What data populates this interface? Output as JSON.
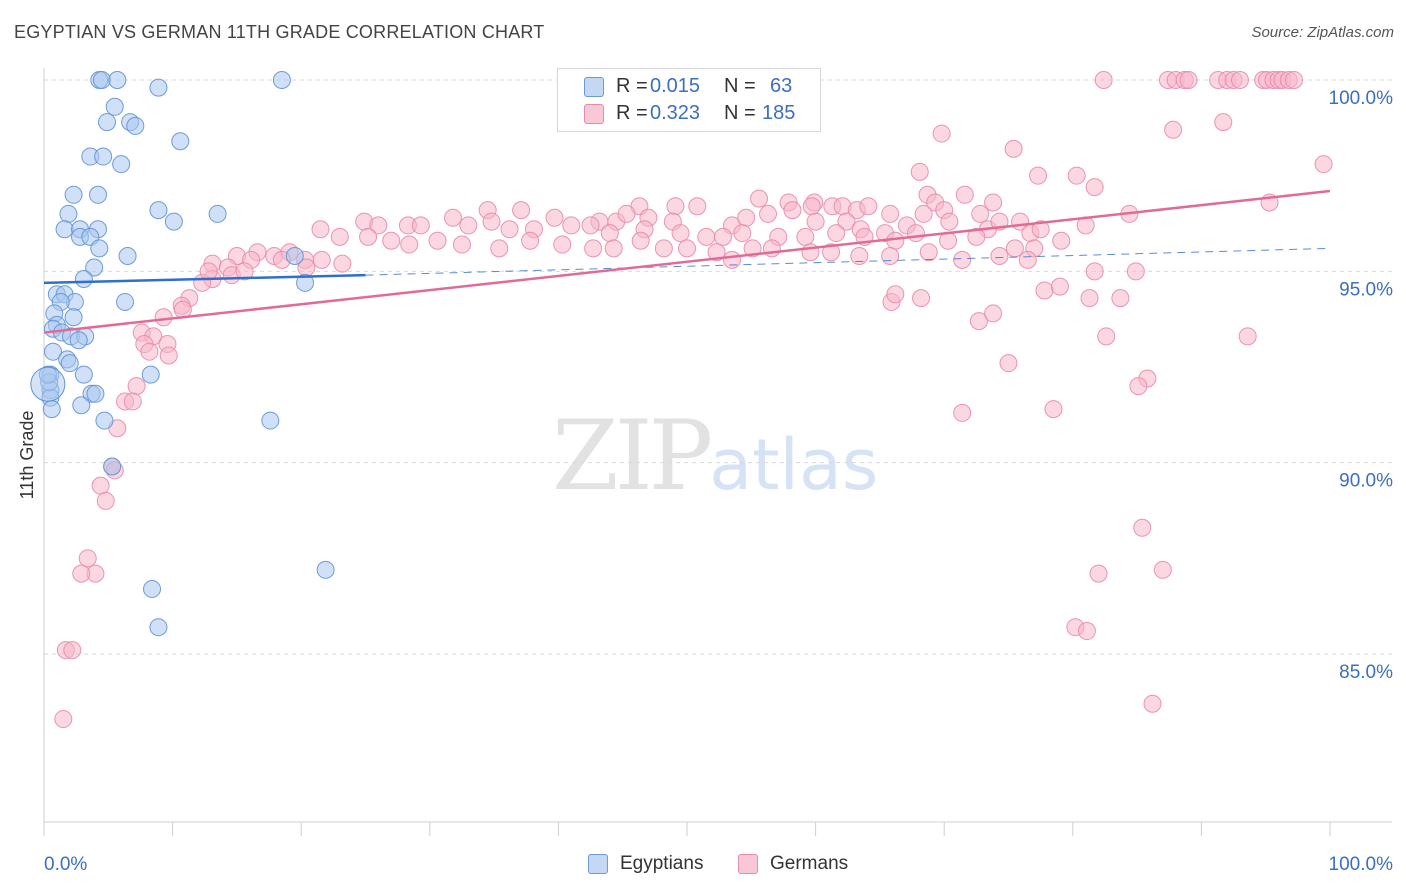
{
  "header": {
    "title": "EGYPTIAN VS GERMAN 11TH GRADE CORRELATION CHART",
    "source": "Source: ZipAtlas.com"
  },
  "watermark": {
    "zip": "ZIP",
    "atlas": "atlas"
  },
  "colors": {
    "egyptians_fill": "#a9c7ee",
    "egyptians_stroke": "#5f92d6",
    "egyptians_line": "#2f6fce",
    "germans_fill": "#f7b7cb",
    "germans_stroke": "#e98aa8",
    "germans_line": "#e26b96",
    "value_blue": "#3a6fc4"
  },
  "stats_legend": [
    {
      "r_label": "R =",
      "r_value": "0.015",
      "n_label": "N =",
      "n_value": "63"
    },
    {
      "r_label": "R =",
      "r_value": "0.323",
      "n_label": "N =",
      "n_value": "185"
    }
  ],
  "chart_data": {
    "type": "scatter",
    "title": "EGYPTIAN VS GERMAN 11TH GRADE CORRELATION CHART",
    "xlabel": "",
    "ylabel": "11th Grade",
    "xlim": [
      0,
      100
    ],
    "ylim": [
      80.5,
      101.0
    ],
    "x_tick_labels": [
      "0.0%",
      "100.0%"
    ],
    "y_ticks": [
      85.0,
      90.0,
      95.0,
      100.0
    ],
    "y_tick_labels": [
      "85.0%",
      "90.0%",
      "95.0%",
      "100.0%"
    ],
    "grid": true,
    "legend_position": "bottom",
    "series": [
      {
        "name": "Egyptians",
        "r": 0.015,
        "n": 63,
        "trend": {
          "x": [
            0,
            25
          ],
          "y": [
            94.7,
            94.9
          ],
          "dashed_to": [
            100,
            95.6
          ]
        },
        "points": [
          [
            4.3,
            100
          ],
          [
            4.5,
            100
          ],
          [
            5.7,
            100
          ],
          [
            18.5,
            100
          ],
          [
            8.9,
            99.8
          ],
          [
            5.5,
            99.3
          ],
          [
            4.9,
            98.9
          ],
          [
            6.7,
            98.9
          ],
          [
            7.1,
            98.8
          ],
          [
            10.6,
            98.4
          ],
          [
            3.6,
            98.0
          ],
          [
            4.6,
            98.0
          ],
          [
            6.0,
            97.8
          ],
          [
            2.3,
            97.0
          ],
          [
            4.2,
            97.0
          ],
          [
            1.9,
            96.5
          ],
          [
            13.5,
            96.5
          ],
          [
            8.9,
            96.6
          ],
          [
            10.1,
            96.3
          ],
          [
            1.6,
            96.1
          ],
          [
            2.8,
            96.1
          ],
          [
            4.2,
            96.1
          ],
          [
            2.8,
            95.9
          ],
          [
            3.6,
            95.9
          ],
          [
            4.3,
            95.6
          ],
          [
            6.5,
            95.4
          ],
          [
            3.9,
            95.1
          ],
          [
            19.5,
            95.4
          ],
          [
            3.1,
            94.8
          ],
          [
            20.3,
            94.7
          ],
          [
            1.0,
            94.4
          ],
          [
            1.6,
            94.4
          ],
          [
            2.4,
            94.2
          ],
          [
            1.3,
            94.2
          ],
          [
            6.3,
            94.2
          ],
          [
            0.8,
            93.9
          ],
          [
            2.3,
            93.8
          ],
          [
            1.0,
            93.6
          ],
          [
            0.7,
            93.5
          ],
          [
            1.4,
            93.4
          ],
          [
            2.1,
            93.3
          ],
          [
            3.2,
            93.3
          ],
          [
            2.7,
            93.2
          ],
          [
            0.7,
            92.9
          ],
          [
            1.8,
            92.7
          ],
          [
            2.0,
            92.6
          ],
          [
            3.1,
            92.3
          ],
          [
            8.3,
            92.3
          ],
          [
            0.5,
            92.3
          ],
          [
            0.5,
            91.9
          ],
          [
            0.5,
            91.7
          ],
          [
            3.7,
            91.8
          ],
          [
            4.0,
            91.8
          ],
          [
            2.9,
            91.5
          ],
          [
            0.6,
            91.4
          ],
          [
            4.7,
            91.1
          ],
          [
            17.6,
            91.1
          ],
          [
            5.3,
            89.9
          ],
          [
            21.9,
            87.2
          ],
          [
            8.4,
            86.7
          ],
          [
            8.9,
            85.7
          ],
          [
            0.4,
            92.1
          ],
          [
            0.3,
            92.3
          ]
        ]
      },
      {
        "name": "Germans",
        "r": 0.323,
        "n": 185,
        "trend": {
          "x": [
            0,
            100
          ],
          "y": [
            93.4,
            97.1
          ]
        },
        "points": [
          [
            82.4,
            100
          ],
          [
            87.4,
            100
          ],
          [
            88.0,
            100
          ],
          [
            88.7,
            100
          ],
          [
            89.0,
            100
          ],
          [
            91.3,
            100
          ],
          [
            92.0,
            100
          ],
          [
            92.5,
            100
          ],
          [
            93.0,
            100
          ],
          [
            94.8,
            100
          ],
          [
            95.1,
            100
          ],
          [
            95.6,
            100
          ],
          [
            96.0,
            100
          ],
          [
            96.3,
            100
          ],
          [
            96.8,
            100
          ],
          [
            97.2,
            100
          ],
          [
            87.8,
            98.7
          ],
          [
            91.7,
            98.9
          ],
          [
            69.8,
            98.6
          ],
          [
            75.4,
            98.2
          ],
          [
            99.5,
            97.8
          ],
          [
            68.1,
            97.6
          ],
          [
            77.3,
            97.5
          ],
          [
            80.3,
            97.5
          ],
          [
            81.7,
            97.2
          ],
          [
            55.6,
            96.9
          ],
          [
            57.9,
            96.8
          ],
          [
            59.9,
            96.8
          ],
          [
            68.7,
            97.0
          ],
          [
            71.6,
            97.0
          ],
          [
            69.3,
            96.8
          ],
          [
            73.8,
            96.8
          ],
          [
            46.3,
            96.7
          ],
          [
            49.1,
            96.7
          ],
          [
            50.8,
            96.7
          ],
          [
            59.7,
            96.7
          ],
          [
            61.3,
            96.7
          ],
          [
            62.1,
            96.7
          ],
          [
            63.2,
            96.6
          ],
          [
            64.1,
            96.7
          ],
          [
            65.8,
            96.5
          ],
          [
            70.0,
            96.6
          ],
          [
            72.8,
            96.5
          ],
          [
            75.9,
            96.3
          ],
          [
            84.4,
            96.5
          ],
          [
            34.5,
            96.6
          ],
          [
            37.1,
            96.6
          ],
          [
            39.7,
            96.4
          ],
          [
            41.0,
            96.2
          ],
          [
            43.2,
            96.3
          ],
          [
            44.5,
            96.3
          ],
          [
            45.3,
            96.5
          ],
          [
            47.0,
            96.4
          ],
          [
            48.9,
            96.3
          ],
          [
            53.5,
            96.2
          ],
          [
            54.6,
            96.4
          ],
          [
            56.3,
            96.5
          ],
          [
            58.2,
            96.6
          ],
          [
            60.0,
            96.3
          ],
          [
            62.4,
            96.3
          ],
          [
            63.5,
            96.1
          ],
          [
            65.4,
            96.0
          ],
          [
            67.1,
            96.2
          ],
          [
            68.4,
            96.5
          ],
          [
            70.4,
            96.3
          ],
          [
            73.4,
            96.1
          ],
          [
            74.3,
            96.3
          ],
          [
            76.7,
            96.0
          ],
          [
            77.5,
            96.1
          ],
          [
            79.1,
            95.8
          ],
          [
            81.0,
            96.2
          ],
          [
            24.9,
            96.3
          ],
          [
            26.0,
            96.2
          ],
          [
            28.3,
            96.2
          ],
          [
            29.3,
            96.2
          ],
          [
            31.8,
            96.4
          ],
          [
            33.0,
            96.2
          ],
          [
            34.8,
            96.3
          ],
          [
            36.2,
            96.1
          ],
          [
            38.1,
            96.1
          ],
          [
            42.5,
            96.2
          ],
          [
            44.0,
            96.0
          ],
          [
            46.7,
            96.1
          ],
          [
            49.5,
            96.0
          ],
          [
            51.5,
            95.9
          ],
          [
            52.8,
            95.9
          ],
          [
            54.3,
            96.0
          ],
          [
            57.1,
            95.9
          ],
          [
            59.2,
            95.9
          ],
          [
            61.6,
            96.0
          ],
          [
            63.8,
            95.9
          ],
          [
            66.2,
            95.8
          ],
          [
            67.8,
            96.0
          ],
          [
            70.3,
            95.8
          ],
          [
            72.5,
            95.9
          ],
          [
            75.5,
            95.6
          ],
          [
            77.0,
            95.6
          ],
          [
            21.5,
            96.1
          ],
          [
            23.0,
            95.9
          ],
          [
            25.2,
            95.9
          ],
          [
            27.0,
            95.8
          ],
          [
            28.4,
            95.7
          ],
          [
            30.6,
            95.8
          ],
          [
            32.5,
            95.7
          ],
          [
            35.4,
            95.6
          ],
          [
            37.8,
            95.8
          ],
          [
            40.3,
            95.7
          ],
          [
            42.7,
            95.6
          ],
          [
            44.3,
            95.6
          ],
          [
            46.4,
            95.8
          ],
          [
            48.2,
            95.6
          ],
          [
            50.0,
            95.6
          ],
          [
            52.3,
            95.5
          ],
          [
            55.1,
            95.6
          ],
          [
            56.6,
            95.6
          ],
          [
            59.6,
            95.5
          ],
          [
            61.2,
            95.5
          ],
          [
            63.4,
            95.4
          ],
          [
            65.8,
            95.4
          ],
          [
            68.8,
            95.5
          ],
          [
            71.4,
            95.3
          ],
          [
            74.3,
            95.4
          ],
          [
            76.5,
            95.3
          ],
          [
            15.0,
            95.4
          ],
          [
            16.6,
            95.5
          ],
          [
            17.9,
            95.4
          ],
          [
            19.1,
            95.5
          ],
          [
            20.3,
            95.3
          ],
          [
            21.6,
            95.3
          ],
          [
            23.2,
            95.2
          ],
          [
            13.1,
            95.2
          ],
          [
            14.3,
            95.1
          ],
          [
            16.1,
            95.3
          ],
          [
            18.5,
            95.3
          ],
          [
            20.4,
            95.1
          ],
          [
            14.6,
            94.9
          ],
          [
            13.1,
            94.8
          ],
          [
            12.3,
            94.7
          ],
          [
            11.3,
            94.3
          ],
          [
            15.6,
            95.0
          ],
          [
            12.8,
            95.0
          ],
          [
            10.7,
            94.1
          ],
          [
            10.8,
            94.0
          ],
          [
            9.3,
            93.8
          ],
          [
            7.6,
            93.4
          ],
          [
            8.5,
            93.3
          ],
          [
            7.8,
            93.1
          ],
          [
            9.6,
            93.1
          ],
          [
            8.2,
            92.9
          ],
          [
            9.7,
            92.8
          ],
          [
            7.2,
            92.0
          ],
          [
            6.3,
            91.6
          ],
          [
            6.9,
            91.6
          ],
          [
            5.7,
            90.9
          ],
          [
            5.3,
            89.9
          ],
          [
            5.5,
            89.8
          ],
          [
            4.4,
            89.4
          ],
          [
            4.8,
            89.0
          ],
          [
            3.4,
            87.5
          ],
          [
            4.0,
            87.1
          ],
          [
            2.9,
            87.1
          ],
          [
            1.7,
            85.1
          ],
          [
            2.2,
            85.1
          ],
          [
            1.5,
            83.3
          ],
          [
            77.8,
            94.5
          ],
          [
            79.0,
            94.6
          ],
          [
            81.3,
            94.3
          ],
          [
            83.7,
            94.3
          ],
          [
            81.7,
            95.0
          ],
          [
            84.9,
            95.0
          ],
          [
            93.6,
            93.3
          ],
          [
            82.6,
            93.3
          ],
          [
            85.8,
            92.2
          ],
          [
            85.1,
            92.0
          ],
          [
            78.5,
            91.4
          ],
          [
            71.4,
            91.3
          ],
          [
            72.7,
            93.7
          ],
          [
            73.8,
            93.9
          ],
          [
            75.0,
            92.6
          ],
          [
            65.9,
            94.2
          ],
          [
            85.4,
            88.3
          ],
          [
            82.0,
            87.1
          ],
          [
            87.0,
            87.2
          ],
          [
            80.2,
            85.7
          ],
          [
            81.1,
            85.6
          ],
          [
            86.2,
            83.7
          ],
          [
            66.2,
            94.4
          ],
          [
            68.2,
            94.3
          ],
          [
            53.5,
            95.3
          ],
          [
            95.3,
            96.8
          ]
        ]
      }
    ]
  }
}
